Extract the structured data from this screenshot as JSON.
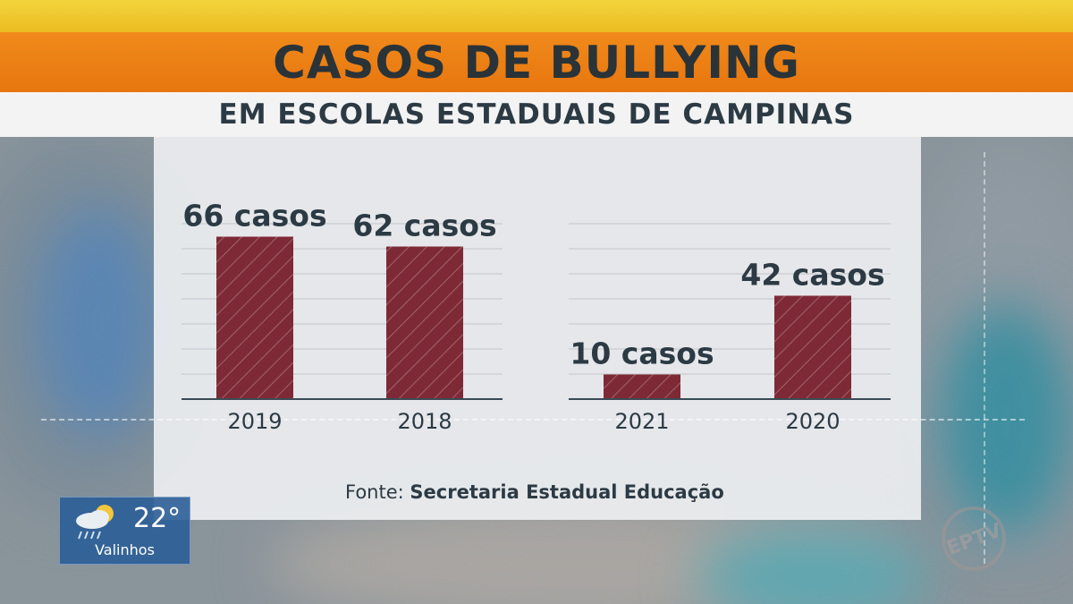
{
  "header": {
    "title": "CASOS DE BULLYING",
    "subtitle": "EM ESCOLAS ESTADUAIS DE CAMPINAS"
  },
  "source": {
    "prefix": "Fonte:",
    "name": "Secretaria Estadual Educação"
  },
  "weather": {
    "temperature": "22°",
    "city": "Valinhos",
    "icon": "rain-cloud-sun-icon"
  },
  "logo": {
    "text": "EPTV"
  },
  "colors": {
    "bar": "#7e2a36",
    "title_bar": "#ec7f15",
    "top_bar": "#f0ca2e",
    "text_dark": "#2c3a44"
  },
  "chart_data": [
    {
      "type": "bar",
      "categories": [
        "2019",
        "2018"
      ],
      "values": [
        66,
        62
      ],
      "data_labels": [
        "66 casos",
        "62 casos"
      ],
      "title": "",
      "xlabel": "",
      "ylabel": "",
      "grid": true
    },
    {
      "type": "bar",
      "categories": [
        "2021",
        "2020"
      ],
      "values": [
        10,
        42
      ],
      "data_labels": [
        "10 casos",
        "42 casos"
      ],
      "title": "",
      "xlabel": "",
      "ylabel": "",
      "grid": true
    }
  ]
}
